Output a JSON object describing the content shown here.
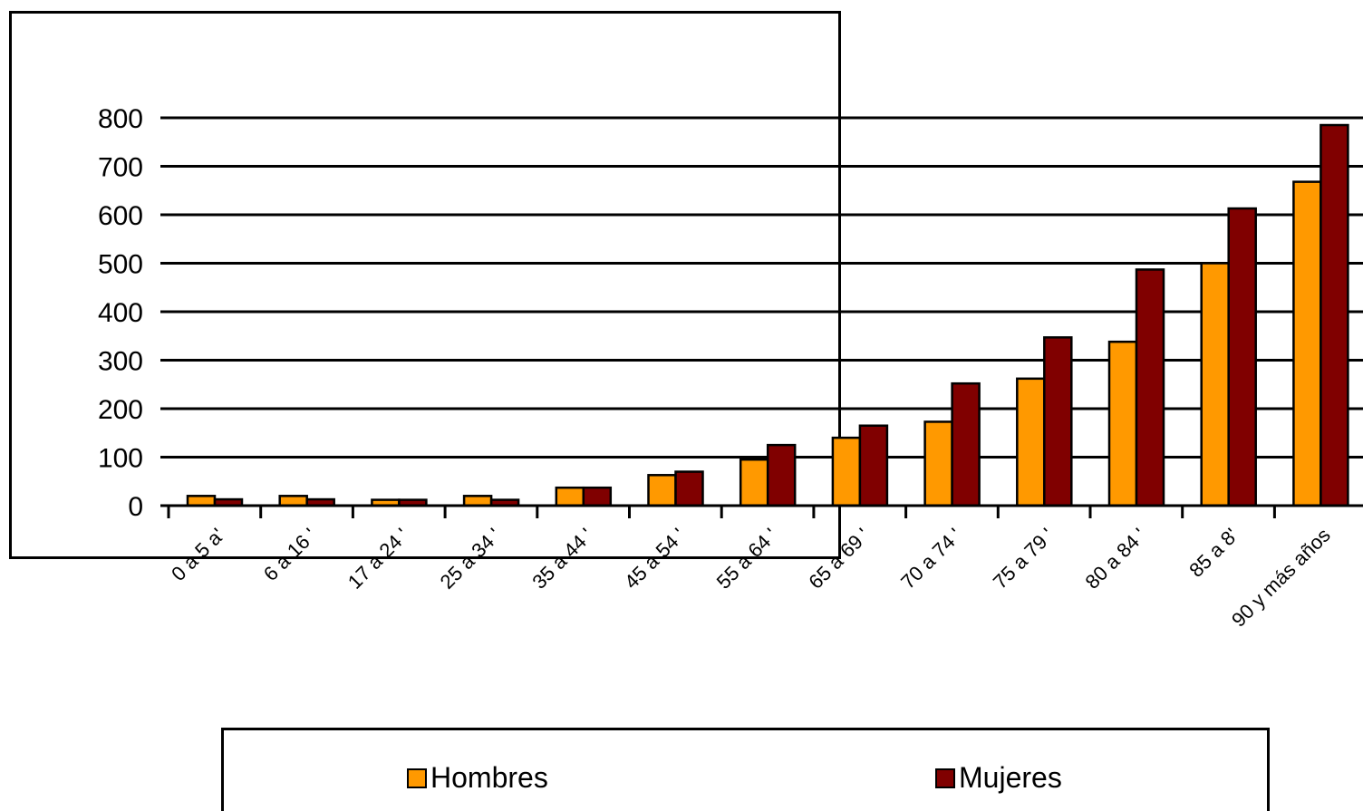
{
  "chart_data": {
    "type": "bar",
    "categories": [
      "0 a 5 a'",
      "6 a 16 '",
      "17 a 24 '",
      "25 a 34 '",
      "35 a 44 '",
      "45 a 54 '",
      "55 a 64 '",
      "65 a 69 '",
      "70 a 74 '",
      "75 a 79 '",
      "80 a 84 '",
      "85 a 8'",
      "90 y más años"
    ],
    "series": [
      {
        "name": "Hombres",
        "values": [
          20,
          20,
          12,
          20,
          37,
          63,
          95,
          140,
          173,
          262,
          338,
          500,
          668
        ]
      },
      {
        "name": "Mujeres",
        "values": [
          13,
          13,
          12,
          12,
          37,
          70,
          125,
          165,
          252,
          347,
          487,
          613,
          785
        ]
      }
    ],
    "colors": {
      "Hombres": "#FF9900",
      "Mujeres": "#800000"
    },
    "yticks": [
      0,
      100,
      200,
      300,
      400,
      500,
      600,
      700,
      800
    ],
    "ylim": [
      0,
      800
    ],
    "grid": true,
    "legend_position": "bottom",
    "title": "",
    "xlabel": "",
    "ylabel": ""
  },
  "legend": {
    "hombres_label": "Hombres",
    "mujeres_label": "Mujeres"
  }
}
